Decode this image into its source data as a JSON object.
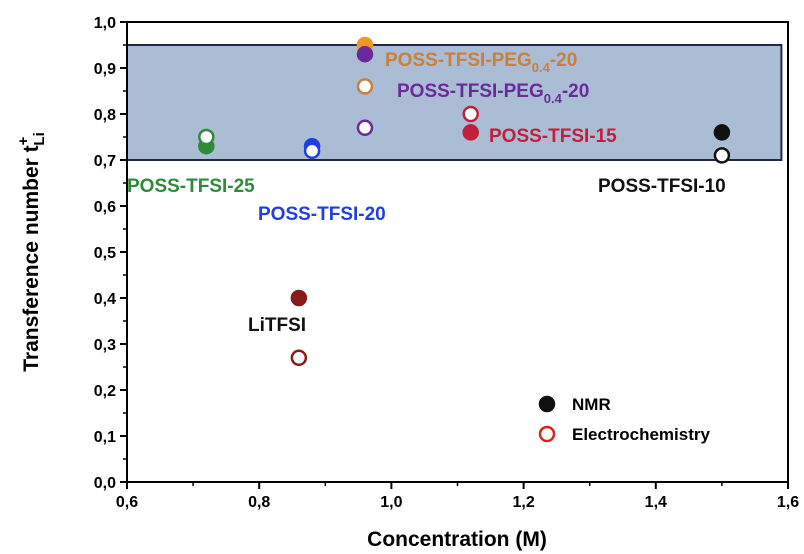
{
  "chart_data": {
    "type": "scatter",
    "xlabel": "Concentration (M)",
    "ylabel": {
      "main": "Transference number t",
      "sup": "+",
      "sub": "Li"
    },
    "xlim": [
      0.6,
      1.6
    ],
    "ylim": [
      0.0,
      1.0
    ],
    "x_ticks": [
      "0,6",
      "0,8",
      "1,0",
      "1,2",
      "1,4",
      "1,6"
    ],
    "y_ticks": [
      "0,0",
      "0,1",
      "0,2",
      "0,3",
      "0,4",
      "0,5",
      "0,6",
      "0,7",
      "0,8",
      "0,9",
      "1,0"
    ],
    "highlight_band": {
      "y0": 0.7,
      "y1": 0.95,
      "color": "#8fa7c7"
    },
    "points": [
      {
        "x": 0.86,
        "y": 0.4,
        "method": "NMR",
        "color": "#8b1a1a"
      },
      {
        "x": 0.86,
        "y": 0.27,
        "method": "Electrochemistry",
        "color": "#8b1a1a"
      },
      {
        "x": 0.72,
        "y": 0.73,
        "method": "NMR",
        "color": "#2e8b3a"
      },
      {
        "x": 0.72,
        "y": 0.75,
        "method": "Electrochemistry",
        "color": "#2e8b3a"
      },
      {
        "x": 0.88,
        "y": 0.73,
        "method": "NMR",
        "color": "#1f3fe0"
      },
      {
        "x": 0.88,
        "y": 0.72,
        "method": "Electrochemistry",
        "color": "#1f3fe0"
      },
      {
        "x": 0.96,
        "y": 0.95,
        "method": "NMR",
        "color": "#f0952a"
      },
      {
        "x": 0.96,
        "y": 0.86,
        "method": "Electrochemistry",
        "color": "#c8803a"
      },
      {
        "x": 0.96,
        "y": 0.93,
        "method": "NMR",
        "color": "#6a2a9a"
      },
      {
        "x": 0.96,
        "y": 0.77,
        "method": "Electrochemistry",
        "color": "#6a2a9a"
      },
      {
        "x": 1.12,
        "y": 0.76,
        "method": "NMR",
        "color": "#c0203a"
      },
      {
        "x": 1.12,
        "y": 0.8,
        "method": "Electrochemistry",
        "color": "#c0203a"
      },
      {
        "x": 1.5,
        "y": 0.76,
        "method": "NMR",
        "color": "#111111"
      },
      {
        "x": 1.5,
        "y": 0.71,
        "method": "Electrochemistry",
        "color": "#111111"
      }
    ],
    "annotations": [
      {
        "name": "label-litfsi",
        "text": "LiTFSI",
        "color": "#111111"
      },
      {
        "name": "label-poss-tfsi-25",
        "text": "POSS-TFSI-25",
        "color": "#2e8b3a"
      },
      {
        "name": "label-poss-tfsi-20",
        "text": "POSS-TFSI-20",
        "color": "#1f3fe0"
      },
      {
        "name": "label-poss-tfsi-peg-orange",
        "text": "POSS-TFSI-PEG",
        "sub": "0.4",
        "suffix": "-20",
        "color": "#c8803a"
      },
      {
        "name": "label-poss-tfsi-peg-purple",
        "text": "POSS-TFSI-PEG",
        "sub": "0.4",
        "suffix": "-20",
        "color": "#6a2a9a"
      },
      {
        "name": "label-poss-tfsi-15",
        "text": "POSS-TFSI-15",
        "color": "#c0203a"
      },
      {
        "name": "label-poss-tfsi-10",
        "text": "POSS-TFSI-10",
        "color": "#111111"
      }
    ],
    "legend": {
      "position": "bottom-right",
      "entries": [
        {
          "label": "NMR",
          "marker": "filled",
          "color": "#111111"
        },
        {
          "label": "Electrochemistry",
          "marker": "open",
          "color": "#e02020"
        }
      ]
    }
  }
}
